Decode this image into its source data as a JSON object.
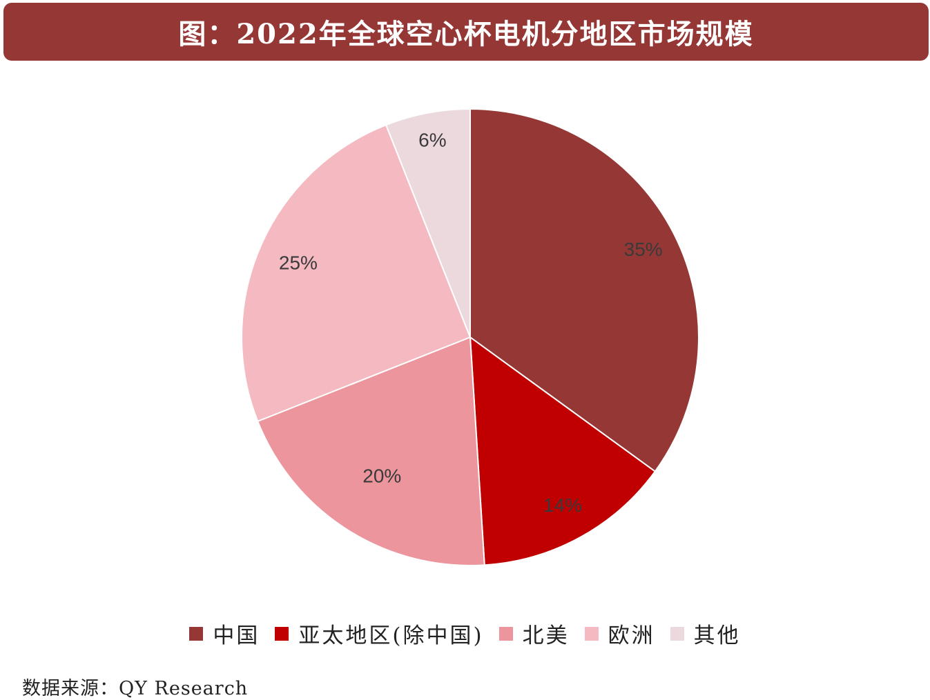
{
  "title": "图：2022年全球空心杯电机分地区市场规模",
  "source": "数据来源：QY Research",
  "chart_data": {
    "type": "pie",
    "title": "图：2022年全球空心杯电机分地区市场规模",
    "slices": [
      {
        "label": "中国",
        "value": 35,
        "display": "35%",
        "color": "#953735"
      },
      {
        "label": "亚太地区(除中国)",
        "value": 14,
        "display": "14%",
        "color": "#C00000"
      },
      {
        "label": "北美",
        "value": 20,
        "display": "20%",
        "color": "#EC959D"
      },
      {
        "label": "欧洲",
        "value": 25,
        "display": "25%",
        "color": "#F4B9C1"
      },
      {
        "label": "其他",
        "value": 6,
        "display": "6%",
        "color": "#EBD9DE"
      }
    ],
    "legend_position": "bottom",
    "start_angle": "12 o'clock",
    "direction": "clockwise"
  },
  "legend": {
    "items": [
      {
        "label": "中国",
        "color": "#953735"
      },
      {
        "label": "亚太地区(除中国)",
        "color": "#C00000"
      },
      {
        "label": "北美",
        "color": "#EC959D"
      },
      {
        "label": "欧洲",
        "color": "#F4B9C1"
      },
      {
        "label": "其他",
        "color": "#EBD9DE"
      }
    ]
  }
}
